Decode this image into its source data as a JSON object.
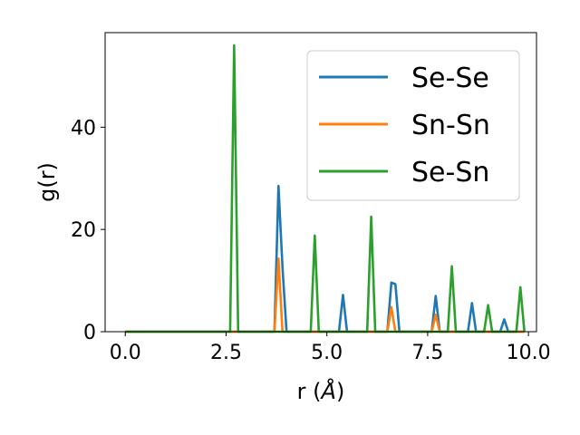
{
  "chart_data": {
    "type": "line",
    "title": "",
    "xlabel": "r (",
    "xlabel_unit": "Å",
    "xlabel_close": ")",
    "ylabel": "g(r)",
    "xlim": [
      -0.5,
      10.2
    ],
    "ylim": [
      0,
      58.5
    ],
    "xticks": [
      0.0,
      2.5,
      5.0,
      7.5,
      10.0
    ],
    "xtick_labels": [
      "0.0",
      "2.5",
      "5.0",
      "7.5",
      "10.0"
    ],
    "yticks": [
      0,
      20,
      40
    ],
    "ytick_labels": [
      "0",
      "20",
      "40"
    ],
    "grid": false,
    "legend_position": "top-right",
    "series": [
      {
        "name": "Se-Se",
        "color": "#1f77b4",
        "x": [
          0.0,
          3.7,
          3.8,
          3.9,
          4.0,
          5.3,
          5.4,
          5.5,
          6.5,
          6.6,
          6.7,
          6.8,
          7.6,
          7.7,
          7.8,
          8.5,
          8.6,
          8.7,
          9.3,
          9.4,
          9.5,
          9.9
        ],
        "y": [
          0,
          0,
          28.5,
          12.5,
          0,
          0,
          7.2,
          0,
          0,
          9.6,
          9.3,
          0,
          0,
          7.0,
          0,
          0,
          5.6,
          0,
          0,
          2.4,
          0,
          0
        ]
      },
      {
        "name": "Sn-Sn",
        "color": "#ff7f0e",
        "x": [
          0.0,
          3.7,
          3.8,
          3.9,
          6.5,
          6.6,
          6.7,
          7.6,
          7.7,
          7.8,
          9.9
        ],
        "y": [
          0,
          0,
          14.3,
          0,
          0,
          4.8,
          0,
          0,
          3.3,
          0,
          0
        ]
      },
      {
        "name": "Se-Sn",
        "color": "#2ca02c",
        "x": [
          0.0,
          2.6,
          2.7,
          2.8,
          4.6,
          4.7,
          4.8,
          6.0,
          6.1,
          6.2,
          8.0,
          8.1,
          8.2,
          8.9,
          9.0,
          9.1,
          9.7,
          9.8,
          9.9
        ],
        "y": [
          0,
          0,
          56.0,
          0,
          0,
          18.8,
          0,
          0,
          22.5,
          0,
          0,
          12.8,
          0,
          0,
          5.2,
          0,
          0,
          8.7,
          0
        ]
      }
    ]
  }
}
